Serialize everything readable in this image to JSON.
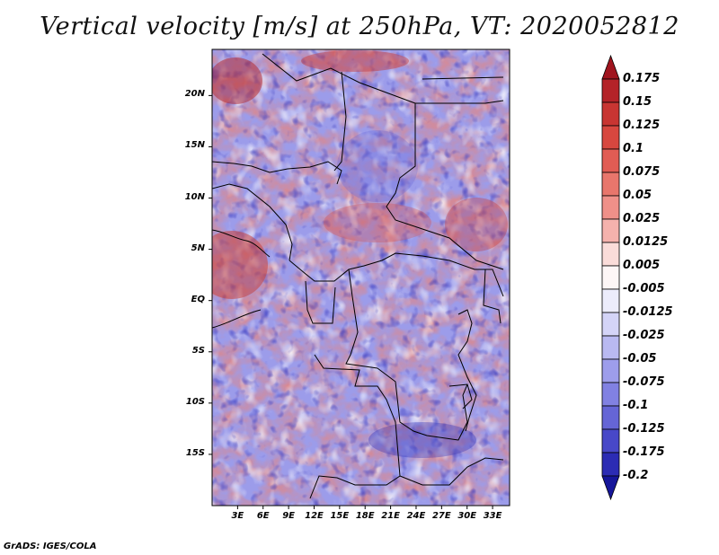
{
  "title": "Vertical velocity [m/s] at 250hPa, VT: 2020052812",
  "footer": "GrADS: IGES/COLA",
  "map": {
    "lat_labels": [
      "20N",
      "15N",
      "10N",
      "5N",
      "EQ",
      "5S",
      "10S",
      "15S"
    ],
    "lat_values": [
      20,
      15,
      10,
      5,
      0,
      -5,
      -10,
      -15
    ],
    "lon_labels": [
      "3E",
      "6E",
      "9E",
      "12E",
      "15E",
      "18E",
      "21E",
      "24E",
      "27E",
      "30E",
      "33E"
    ],
    "lon_values": [
      3,
      6,
      9,
      12,
      15,
      18,
      21,
      24,
      27,
      30,
      33
    ],
    "lon_range": [
      0,
      35
    ],
    "lat_range": [
      -20,
      24.5
    ]
  },
  "colorbar": {
    "labels": [
      "0.175",
      "0.15",
      "0.125",
      "0.1",
      "0.075",
      "0.05",
      "0.025",
      "0.0125",
      "0.005",
      "-0.005",
      "-0.0125",
      "-0.025",
      "-0.05",
      "-0.075",
      "-0.1",
      "-0.125",
      "-0.175",
      "-0.2"
    ],
    "colors": [
      "#a0141e",
      "#b42328",
      "#c83532",
      "#d7473f",
      "#e15c54",
      "#e8766c",
      "#ef9089",
      "#f5b2ad",
      "#fadcd9",
      "#fdf6f6",
      "#ececfb",
      "#d4d4f7",
      "#b9b9f1",
      "#9d9deb",
      "#8181e2",
      "#6565d6",
      "#4848c8",
      "#2c2cb4",
      "#16169a"
    ]
  }
}
